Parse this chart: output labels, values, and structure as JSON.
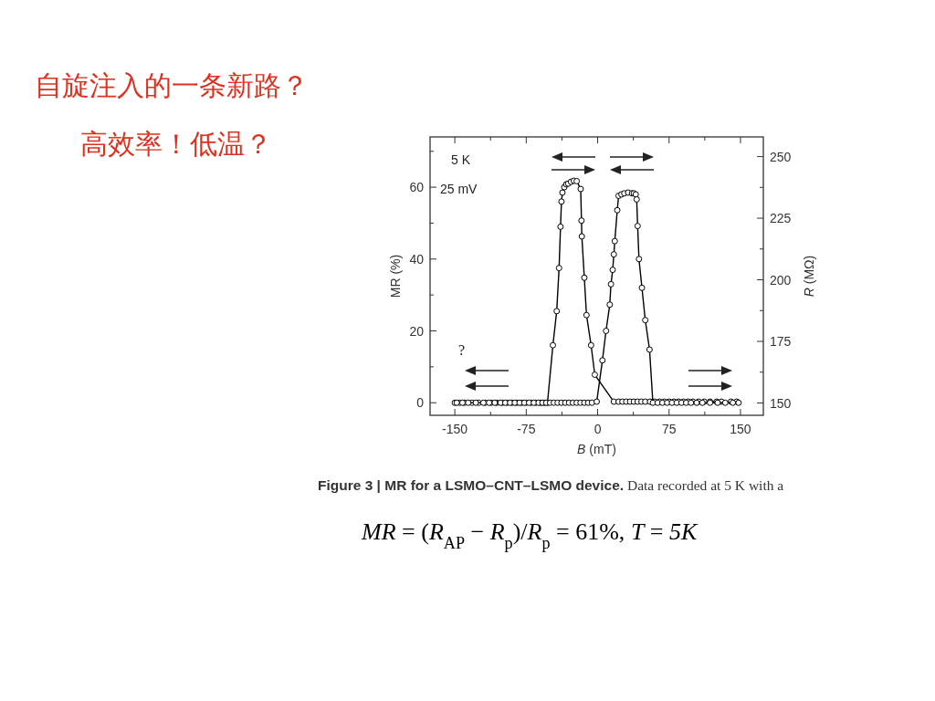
{
  "chart_data": {
    "type": "line",
    "title": "自旋注入的一条新路？",
    "subtitle": "高效率！低温？",
    "xlabel": "*B* (mT)",
    "ylabel": "MR (%)",
    "y2label": "*R* (MΩ)",
    "xlim": [
      -176,
      174
    ],
    "ylim": [
      -3.5,
      74
    ],
    "y2lim": [
      145,
      258
    ],
    "xticks": [
      -150,
      {
        "value": -112.5,
        "label": null
      },
      -75,
      {
        "value": -37.5,
        "label": null
      },
      0,
      {
        "value": 37.5,
        "label": null
      },
      75,
      {
        "value": 112.5,
        "label": null
      },
      150
    ],
    "yticks": [
      0,
      {
        "value": 10,
        "label": null
      },
      20,
      {
        "value": 30,
        "label": null
      },
      40,
      {
        "value": 50,
        "label": null
      },
      60,
      {
        "value": 70,
        "label": null
      }
    ],
    "y2ticks": [
      150,
      {
        "value": 162.5,
        "label": null
      },
      175,
      {
        "value": 187.5,
        "label": null
      },
      200,
      {
        "value": 212.5,
        "label": null
      },
      225,
      {
        "value": 237.5,
        "label": null
      },
      250
    ],
    "marker": "circle",
    "line_style": "solid",
    "annotations": [
      "5 K",
      "25 mV",
      "?",
      "**Figure 3 | MR for a LSMO–CNT–LSMO device.** Data recorded at 5 K with a",
      "*MR* = (*R*$_{AP}$ − *R*$_{p}$)/*R*$_{p}$ = 61%,    *T* = *5K*"
    ],
    "series": [
      {
        "color": "#000000",
        "x": [
          -150,
          -145,
          -140,
          -132,
          -125,
          -118,
          -112,
          -106,
          -100,
          -95,
          -90,
          -85,
          -80,
          -75,
          -70,
          -65,
          -60,
          -56,
          -52.7,
          -47,
          -43,
          -40.5,
          -39,
          -38,
          -37,
          -35,
          -33,
          -31,
          -28,
          -25,
          -22,
          -17.8,
          -17,
          -16.6,
          -14,
          -11.7,
          -6.9,
          -3,
          17,
          22,
          26,
          30,
          34,
          38,
          42,
          46,
          50,
          55,
          60,
          65,
          70,
          75,
          80,
          85,
          90,
          95,
          100,
          106,
          112,
          118,
          125,
          130,
          140,
          146
        ],
        "values": [
          0,
          0,
          0,
          0,
          0,
          0,
          0,
          0,
          0,
          0,
          0,
          0,
          0,
          0,
          0,
          0,
          0,
          0,
          0,
          16,
          25.5,
          37.5,
          49,
          56,
          58.5,
          60,
          60.8,
          61,
          61.5,
          61.8,
          61.7,
          59.5,
          50.7,
          46.3,
          34.8,
          24.4,
          16,
          7.8,
          0.3,
          0.3,
          0.3,
          0.3,
          0.3,
          0.3,
          0.3,
          0.3,
          0.3,
          0.3,
          0.3,
          0.3,
          0.3,
          0.3,
          0.3,
          0.3,
          0.3,
          0.3,
          0.3,
          0.3,
          0.3,
          0.3,
          0.3,
          0.3,
          0.3,
          0.3
        ]
      },
      {
        "color": "#000000",
        "x": [
          -148,
          -142,
          -136,
          -128,
          -120,
          -114,
          -108,
          -102,
          -97,
          -92,
          -87,
          -82,
          -77,
          -72,
          -67,
          -62,
          -58,
          -54,
          -50,
          -46,
          -42,
          -38,
          -34,
          -30,
          -26,
          -22,
          -18,
          -14,
          -10,
          -6,
          -1,
          5,
          8.8,
          12.7,
          14,
          15.8,
          17,
          18,
          20.6,
          22,
          25,
          28,
          32,
          36,
          38,
          40,
          41,
          42,
          43.4,
          46.5,
          50,
          54.5,
          58,
          63,
          68,
          73,
          78,
          83,
          88,
          93,
          98,
          104,
          110,
          118,
          126,
          134,
          142,
          148
        ],
        "values": [
          0,
          0,
          0,
          0,
          0,
          0,
          0,
          0,
          0,
          0,
          0,
          0,
          0,
          0,
          0,
          0,
          0,
          0,
          0,
          0,
          0,
          0,
          0,
          0,
          0,
          0,
          0,
          0,
          0,
          0,
          0.3,
          11.8,
          20,
          27.3,
          33,
          37,
          41.3,
          45,
          53.6,
          57.6,
          58,
          58.3,
          58.5,
          58.3,
          58.3,
          58,
          56.6,
          49.2,
          40,
          32,
          23,
          14.8,
          0,
          0,
          0,
          0,
          0,
          0,
          0,
          0,
          0,
          0,
          0,
          0,
          0,
          0,
          0,
          0
        ]
      }
    ]
  }
}
